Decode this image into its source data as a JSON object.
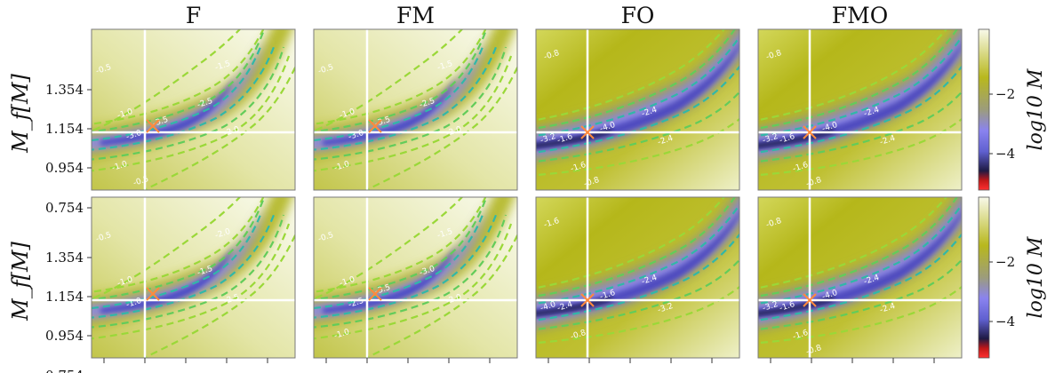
{
  "chart_data": {
    "type": "heatmap",
    "columns": [
      "F",
      "FM",
      "FO",
      "FMO"
    ],
    "rows": 2,
    "ylabel": "M_f[M]",
    "yticks": [
      "1.354",
      "1.154",
      "0.954",
      "0.754"
    ],
    "colorbar": {
      "label": "log10 M",
      "ticks": [
        "−2",
        "−4"
      ],
      "colors": [
        "#f8f9ea",
        "#d3d75a",
        "#b8b81d",
        "#9c9c7c",
        "#8a83ef",
        "#6060d0",
        "#1e1a44",
        "#c01818",
        "#ff3030"
      ]
    },
    "marker_color": "#ff8a3c",
    "contour_colors": [
      "#9ad838",
      "#62cc5a",
      "#30b8a8"
    ],
    "panels": [
      {
        "row": 0,
        "col": 0,
        "name": "F",
        "variant": "F",
        "contour_labels": [
          "-0.5",
          "-1.0",
          "-1.5",
          "-2.0",
          "-2.5",
          "-3.0",
          "-3.5",
          "-1.0",
          "-0.5"
        ]
      },
      {
        "row": 0,
        "col": 1,
        "name": "FM",
        "variant": "F",
        "contour_labels": [
          "-0.5",
          "-1.0",
          "-1.5",
          "-2.0",
          "-2.5",
          "-3.0",
          "-3.5",
          "-1.0"
        ]
      },
      {
        "row": 0,
        "col": 2,
        "name": "FO",
        "variant": "O",
        "contour_labels": [
          "-0.8",
          "-1.6",
          "-2.4",
          "-2.4",
          "-3.2",
          "-4.0",
          "-1.6",
          "-0.8"
        ]
      },
      {
        "row": 0,
        "col": 3,
        "name": "FMO",
        "variant": "O",
        "contour_labels": [
          "-0.8",
          "-1.6",
          "-2.4",
          "-2.4",
          "-3.2",
          "-4.0",
          "-1.6",
          "-0.8"
        ]
      },
      {
        "row": 1,
        "col": 0,
        "name": "F",
        "variant": "F",
        "contour_labels": [
          "-0.5",
          "-1.0",
          "-2.0",
          "-2.5",
          "-1.5",
          "-1.0"
        ]
      },
      {
        "row": 1,
        "col": 1,
        "name": "FM",
        "variant": "F",
        "contour_labels": [
          "-0.5",
          "-1.0",
          "-1.5",
          "-2.0",
          "-3.0",
          "-2.5",
          "-3.5",
          "-1.0"
        ]
      },
      {
        "row": 1,
        "col": 2,
        "name": "FO",
        "variant": "O",
        "contour_labels": [
          "-1.6",
          "-2.4",
          "-2.4",
          "-3.2",
          "-4.0",
          "-1.6",
          "-0.8"
        ]
      },
      {
        "row": 1,
        "col": 3,
        "name": "FMO",
        "variant": "O",
        "contour_labels": [
          "-0.8",
          "-1.6",
          "-2.4",
          "-2.4",
          "-3.2",
          "-4.0",
          "-1.6",
          "-0.8"
        ]
      }
    ]
  }
}
